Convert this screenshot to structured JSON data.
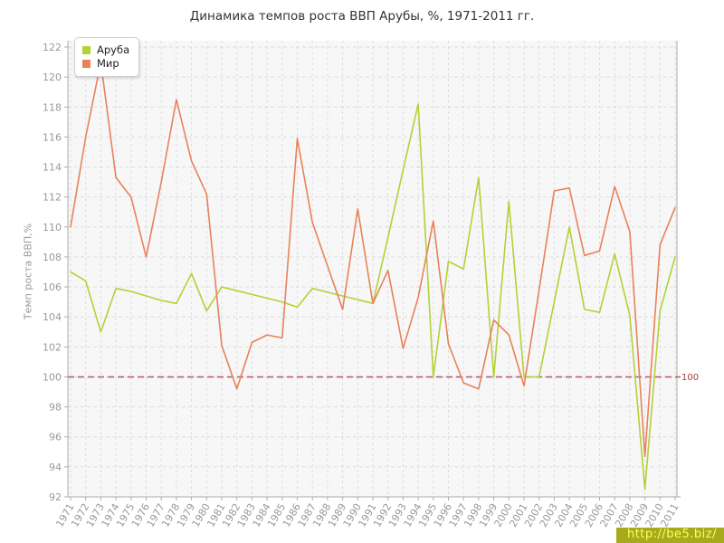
{
  "chart_data": {
    "type": "line",
    "title": "Динамика темпов роста ВВП Арубы, %, 1971-2011 гг.",
    "ylabel": "Темп роста ВВП,%",
    "xlabel": "",
    "ylim": [
      92,
      122
    ],
    "ytick_step": 2,
    "grid": true,
    "legend_position": "top-left",
    "x": [
      1971,
      1972,
      1973,
      1974,
      1975,
      1976,
      1977,
      1978,
      1979,
      1980,
      1981,
      1982,
      1983,
      1984,
      1985,
      1986,
      1987,
      1988,
      1989,
      1990,
      1991,
      1992,
      1993,
      1994,
      1995,
      1996,
      1997,
      1998,
      1999,
      2000,
      2001,
      2002,
      2003,
      2004,
      2005,
      2006,
      2007,
      2008,
      2009,
      2010,
      2011
    ],
    "series": [
      {
        "name": "Аруба",
        "color": "#b2d235",
        "values": [
          107.0,
          106.4,
          103.0,
          105.9,
          105.7,
          105.4,
          105.1,
          104.9,
          106.9,
          104.4,
          106.0,
          105.75,
          105.5,
          105.25,
          105.0,
          104.65,
          105.9,
          105.65,
          105.4,
          105.15,
          104.9,
          109.3,
          113.8,
          118.2,
          100.0,
          107.7,
          107.2,
          113.3,
          100.0,
          111.7,
          100.0,
          100.0,
          105.0,
          110.0,
          104.5,
          104.3,
          108.2,
          104.1,
          92.5,
          104.4,
          108.0
        ]
      },
      {
        "name": "Мир",
        "color": "#e8825a",
        "values": [
          110.0,
          116.0,
          121.0,
          113.3,
          112.0,
          108.0,
          113.0,
          118.5,
          114.4,
          112.2,
          102.1,
          99.2,
          102.3,
          102.8,
          102.6,
          115.9,
          110.3,
          107.4,
          104.5,
          111.2,
          104.9,
          107.1,
          101.9,
          105.3,
          110.4,
          102.2,
          99.6,
          99.2,
          103.8,
          102.8,
          99.4,
          105.8,
          112.4,
          112.6,
          108.1,
          108.4,
          112.7,
          109.7,
          94.7,
          108.8,
          111.3
        ]
      }
    ],
    "reference_line": {
      "value": 100,
      "label": "100",
      "color": "#b2566b",
      "label_color": "#9e3d3d"
    },
    "watermark": "http://be5.biz/"
  },
  "style_colors": {
    "plot_bg": "#f7f7f7",
    "grid": "#dedede",
    "axis": "#ababab",
    "tick_label": "#999999",
    "title": "#333333"
  }
}
